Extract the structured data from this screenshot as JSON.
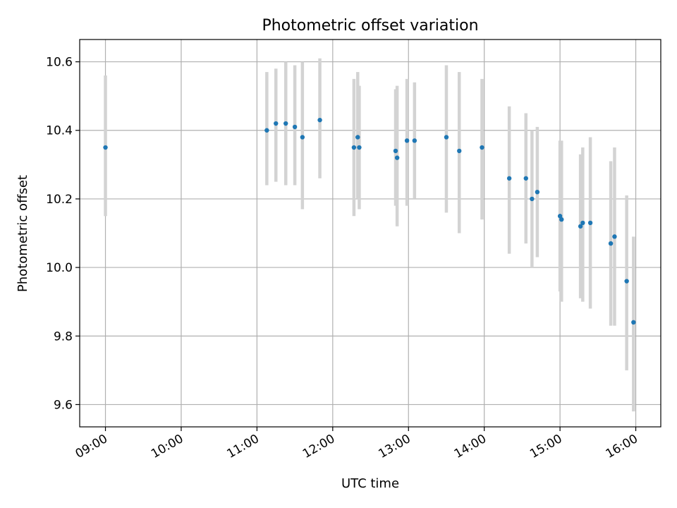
{
  "chart_data": {
    "type": "scatter",
    "title": "Photometric offset variation",
    "xlabel": "UTC time",
    "ylabel": "Photometric offset",
    "x_unit": "hours",
    "x_tick_values": [
      9,
      10,
      11,
      12,
      13,
      14,
      15,
      16
    ],
    "x_tick_labels": [
      "09:00",
      "10:00",
      "11:00",
      "12:00",
      "13:00",
      "14:00",
      "15:00",
      "16:00"
    ],
    "y_tick_values": [
      9.6,
      9.8,
      10.0,
      10.2,
      10.4,
      10.6
    ],
    "y_tick_labels": [
      "9.6",
      "9.8",
      "10.0",
      "10.2",
      "10.4",
      "10.6"
    ],
    "xlim": [
      8.66,
      16.33
    ],
    "ylim": [
      9.535,
      10.665
    ],
    "grid": true,
    "marker_color": "#1f77b4",
    "errorbar_color": "#d3d3d3",
    "points": [
      {
        "x": 9.0,
        "y": 10.35,
        "ylo": 10.15,
        "yhi": 10.56
      },
      {
        "x": 11.13,
        "y": 10.4,
        "ylo": 10.24,
        "yhi": 10.57
      },
      {
        "x": 11.25,
        "y": 10.42,
        "ylo": 10.25,
        "yhi": 10.58
      },
      {
        "x": 11.38,
        "y": 10.42,
        "ylo": 10.24,
        "yhi": 10.6
      },
      {
        "x": 11.5,
        "y": 10.41,
        "ylo": 10.24,
        "yhi": 10.59
      },
      {
        "x": 11.6,
        "y": 10.38,
        "ylo": 10.17,
        "yhi": 10.6
      },
      {
        "x": 11.83,
        "y": 10.43,
        "ylo": 10.26,
        "yhi": 10.61
      },
      {
        "x": 12.28,
        "y": 10.35,
        "ylo": 10.15,
        "yhi": 10.55
      },
      {
        "x": 12.33,
        "y": 10.38,
        "ylo": 10.2,
        "yhi": 10.57
      },
      {
        "x": 12.35,
        "y": 10.35,
        "ylo": 10.17,
        "yhi": 10.53
      },
      {
        "x": 12.83,
        "y": 10.34,
        "ylo": 10.18,
        "yhi": 10.52
      },
      {
        "x": 12.85,
        "y": 10.32,
        "ylo": 10.12,
        "yhi": 10.53
      },
      {
        "x": 12.98,
        "y": 10.37,
        "ylo": 10.18,
        "yhi": 10.55
      },
      {
        "x": 13.08,
        "y": 10.37,
        "ylo": 10.2,
        "yhi": 10.54
      },
      {
        "x": 13.5,
        "y": 10.38,
        "ylo": 10.16,
        "yhi": 10.59
      },
      {
        "x": 13.67,
        "y": 10.34,
        "ylo": 10.1,
        "yhi": 10.57
      },
      {
        "x": 13.97,
        "y": 10.35,
        "ylo": 10.14,
        "yhi": 10.55
      },
      {
        "x": 14.33,
        "y": 10.26,
        "ylo": 10.04,
        "yhi": 10.47
      },
      {
        "x": 14.55,
        "y": 10.26,
        "ylo": 10.07,
        "yhi": 10.45
      },
      {
        "x": 14.63,
        "y": 10.2,
        "ylo": 10.0,
        "yhi": 10.4
      },
      {
        "x": 14.7,
        "y": 10.22,
        "ylo": 10.03,
        "yhi": 10.41
      },
      {
        "x": 15.0,
        "y": 10.15,
        "ylo": 9.93,
        "yhi": 10.37
      },
      {
        "x": 15.02,
        "y": 10.14,
        "ylo": 9.9,
        "yhi": 10.37
      },
      {
        "x": 15.27,
        "y": 10.12,
        "ylo": 9.91,
        "yhi": 10.33
      },
      {
        "x": 15.3,
        "y": 10.13,
        "ylo": 9.9,
        "yhi": 10.35
      },
      {
        "x": 15.4,
        "y": 10.13,
        "ylo": 9.88,
        "yhi": 10.38
      },
      {
        "x": 15.67,
        "y": 10.07,
        "ylo": 9.83,
        "yhi": 10.31
      },
      {
        "x": 15.72,
        "y": 10.09,
        "ylo": 9.83,
        "yhi": 10.35
      },
      {
        "x": 15.88,
        "y": 9.96,
        "ylo": 9.7,
        "yhi": 10.21
      },
      {
        "x": 15.97,
        "y": 9.84,
        "ylo": 9.58,
        "yhi": 10.09
      }
    ]
  }
}
